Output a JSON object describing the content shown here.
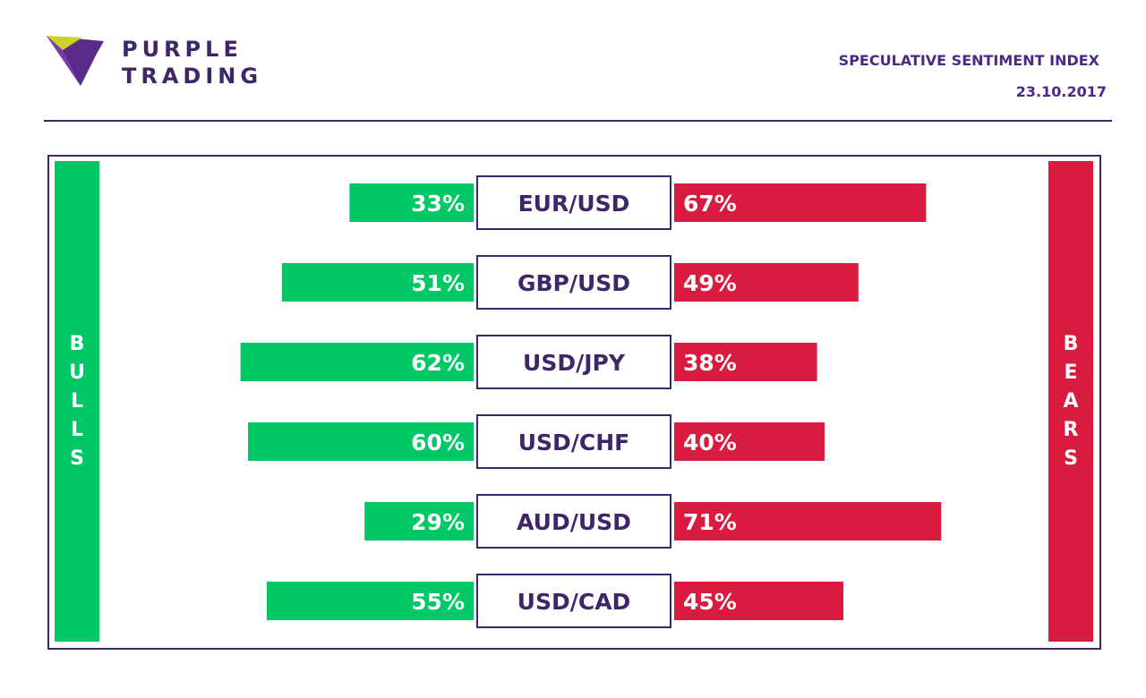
{
  "brand": {
    "line1": "PURPLE",
    "line2": "TRADING",
    "logo_icon": "purple-trading-logo-icon"
  },
  "header": {
    "title": "SPECULATIVE SENTIMENT INDEX",
    "date": "23.10.2017"
  },
  "sides": {
    "bulls_label": "BULLS",
    "bears_label": "BEARS"
  },
  "colors": {
    "bulls": "#00c866",
    "bears": "#d91b40",
    "purple": "#3f2669"
  },
  "chart_data": {
    "type": "bar",
    "categories": [
      "EUR/USD",
      "GBP/USD",
      "USD/JPY",
      "USD/CHF",
      "AUD/USD",
      "USD/CAD"
    ],
    "series": [
      {
        "name": "BULLS",
        "values": [
          33,
          51,
          62,
          60,
          29,
          55
        ]
      },
      {
        "name": "BEARS",
        "values": [
          67,
          49,
          38,
          40,
          71,
          45
        ]
      }
    ],
    "unit": "%",
    "ylim": [
      0,
      100
    ]
  }
}
